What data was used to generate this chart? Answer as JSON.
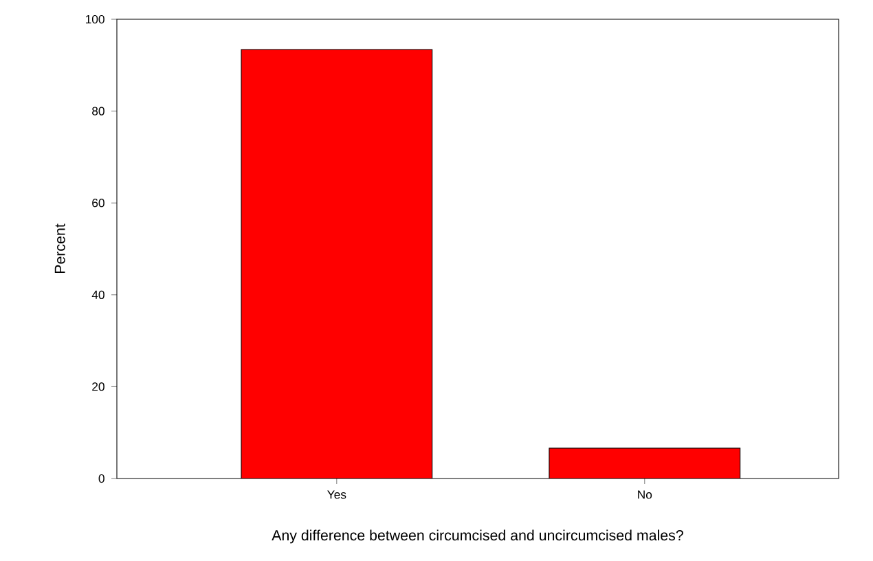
{
  "chart_data": {
    "type": "bar",
    "xlabel": "Any difference between circumcised and uncircumcised males?",
    "ylabel": "Percent",
    "categories": [
      "Yes",
      "No"
    ],
    "values": [
      93.4,
      6.6
    ],
    "color": "#ff0000",
    "ylim": [
      0,
      100
    ],
    "yticks": [
      0,
      20,
      40,
      60,
      80,
      100
    ],
    "grid": false
  }
}
